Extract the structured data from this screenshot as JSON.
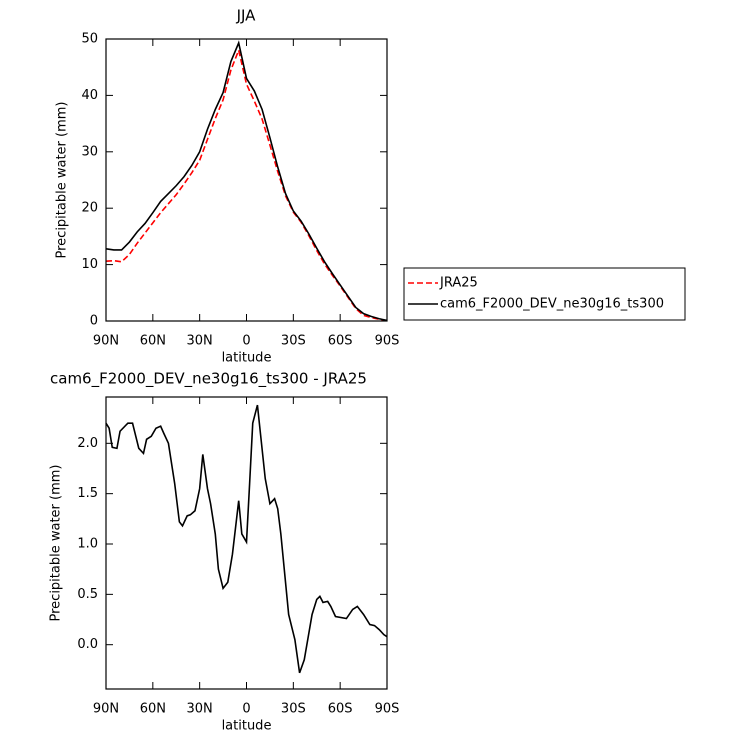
{
  "chart_data": [
    {
      "type": "line",
      "title": "JJA",
      "xlabel": "latitude",
      "ylabel": "Precipitable water (mm)",
      "x": [
        90,
        85,
        80,
        75,
        70,
        65,
        60,
        55,
        50,
        45,
        40,
        35,
        30,
        25,
        20,
        15,
        10,
        5,
        0,
        -5,
        -10,
        -15,
        -20,
        -25,
        -30,
        -35,
        -40,
        -45,
        -50,
        -55,
        -60,
        -65,
        -70,
        -75,
        -80,
        -85,
        -90
      ],
      "xlim": [
        90,
        -90
      ],
      "xticks": [
        {
          "value": 90,
          "label": "90N"
        },
        {
          "value": 60,
          "label": "60N"
        },
        {
          "value": 30,
          "label": "30N"
        },
        0,
        {
          "value": -30,
          "label": "30S"
        },
        {
          "value": -60,
          "label": "60S"
        },
        {
          "value": -90,
          "label": "90S"
        }
      ],
      "ylim": [
        0,
        50
      ],
      "yticks": [
        0,
        10,
        20,
        30,
        40,
        50
      ],
      "legend": "right",
      "series": [
        {
          "name": "JRA25",
          "color": "#ff0000",
          "linestyle": "dashed",
          "values": [
            10.6,
            10.7,
            10.5,
            11.8,
            13.8,
            15.6,
            17.4,
            19.2,
            20.8,
            22.4,
            24.3,
            26.3,
            28.5,
            32.2,
            35.9,
            39.2,
            44.5,
            48.0,
            42.0,
            39.0,
            35.8,
            31.2,
            26.5,
            22.2,
            19.3,
            17.5,
            15.1,
            12.5,
            10.1,
            8.1,
            6.2,
            4.2,
            2.2,
            1.0,
            0.6,
            0.3,
            0.05
          ]
        },
        {
          "name": "cam6_F2000_DEV_ne30g16_ts300",
          "color": "#000000",
          "linestyle": "solid",
          "values": [
            12.8,
            12.6,
            12.6,
            14.0,
            15.8,
            17.3,
            19.2,
            21.2,
            22.6,
            24.0,
            25.6,
            27.6,
            30.0,
            34.0,
            37.5,
            40.5,
            46.0,
            49.3,
            43.0,
            40.8,
            37.5,
            32.5,
            27.3,
            22.6,
            19.5,
            17.7,
            15.4,
            12.9,
            10.5,
            8.4,
            6.4,
            4.4,
            2.4,
            1.3,
            0.8,
            0.4,
            0.1
          ]
        }
      ]
    },
    {
      "type": "line",
      "title": "cam6_F2000_DEV_ne30g16_ts300 - JRA25",
      "xlabel": "latitude",
      "ylabel": "Precipitable water (mm)",
      "x": [
        90,
        88,
        86,
        83,
        81,
        76,
        73,
        69,
        66,
        64,
        61,
        58,
        55,
        53,
        50,
        46,
        43,
        41,
        38,
        36,
        33,
        30,
        28,
        25,
        23,
        20,
        18,
        15,
        12,
        9,
        5,
        3,
        0,
        -2,
        -4,
        -7,
        -12,
        -15,
        -18,
        -20,
        -22,
        -27,
        -31,
        -34,
        -37,
        -42,
        -45,
        -47,
        -49,
        -52,
        -54,
        -57,
        -64,
        -68,
        -71,
        -75,
        -79,
        -82,
        -85,
        -88,
        -90
      ],
      "values": [
        2.2,
        2.15,
        1.96,
        1.95,
        2.12,
        2.2,
        2.2,
        1.95,
        1.9,
        2.04,
        2.07,
        2.15,
        2.17,
        2.1,
        2.0,
        1.6,
        1.22,
        1.18,
        1.28,
        1.29,
        1.33,
        1.55,
        1.89,
        1.55,
        1.4,
        1.1,
        0.75,
        0.56,
        0.62,
        0.9,
        1.43,
        1.1,
        1.02,
        1.6,
        2.2,
        2.38,
        1.65,
        1.4,
        1.45,
        1.35,
        1.1,
        0.3,
        0.05,
        -0.28,
        -0.15,
        0.3,
        0.45,
        0.48,
        0.42,
        0.43,
        0.38,
        0.28,
        0.26,
        0.35,
        0.38,
        0.3,
        0.2,
        0.19,
        0.15,
        0.1,
        0.08
      ],
      "color": "#000000",
      "xlim": [
        90,
        -90
      ],
      "xticks": [
        {
          "value": 90,
          "label": "90N"
        },
        {
          "value": 60,
          "label": "60N"
        },
        {
          "value": 30,
          "label": "30N"
        },
        0,
        {
          "value": -30,
          "label": "30S"
        },
        {
          "value": -60,
          "label": "60S"
        },
        {
          "value": -90,
          "label": "90S"
        }
      ],
      "ylim": [
        -0.44,
        2.46
      ],
      "yticks": [
        {
          "value": 0,
          "label": "0.0"
        },
        0.5,
        {
          "value": 1,
          "label": "1.0"
        },
        1.5,
        {
          "value": 2,
          "label": "2.0"
        }
      ]
    }
  ]
}
